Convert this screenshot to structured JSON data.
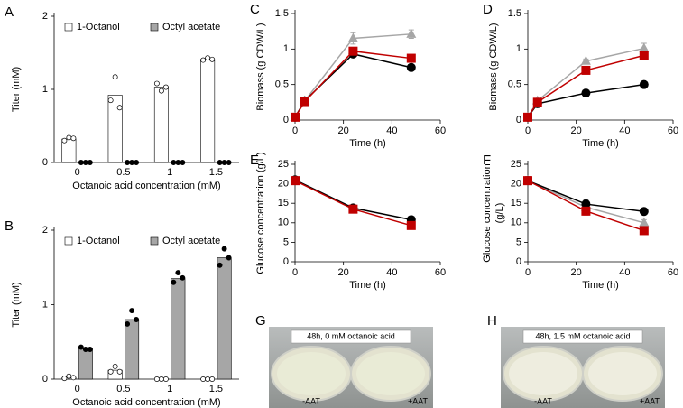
{
  "chart_data": [
    {
      "type": "bar",
      "label": "A",
      "y_label": "Titer (mM)",
      "x_label": "Octanoic acid concentration (mM)",
      "categories": [
        "0",
        "0.5",
        "1",
        "1.5"
      ],
      "ylim": [
        0,
        2
      ],
      "yticks": [
        0,
        1,
        2
      ],
      "series": [
        {
          "name": "1-Octanol",
          "color": "#ffffff",
          "point_color": "#ffffff",
          "values": [
            0.32,
            0.92,
            1.03,
            1.41
          ],
          "points": [
            [
              0.3,
              0.34,
              0.33
            ],
            [
              0.85,
              1.17,
              0.75
            ],
            [
              1.08,
              0.98,
              1.03
            ],
            [
              1.4,
              1.43,
              1.41
            ]
          ]
        },
        {
          "name": "Octyl acetate",
          "color": "#a6a6a6",
          "point_color": "#000000",
          "values": [
            0,
            0,
            0,
            0
          ],
          "points": [
            [
              0,
              0,
              0
            ],
            [
              0,
              0,
              0
            ],
            [
              0,
              0,
              0
            ],
            [
              0,
              0,
              0
            ]
          ]
        }
      ]
    },
    {
      "type": "bar",
      "label": "B",
      "y_label": "Titer (mM)",
      "x_label": "Octanoic acid concentration (mM)",
      "categories": [
        "0",
        "0.5",
        "1",
        "1.5"
      ],
      "ylim": [
        0,
        2
      ],
      "yticks": [
        0,
        1,
        2
      ],
      "series": [
        {
          "name": "1-Octanol",
          "color": "#ffffff",
          "point_color": "#ffffff",
          "values": [
            0.02,
            0.12,
            0,
            0
          ],
          "points": [
            [
              0.01,
              0.04,
              0.02
            ],
            [
              0.1,
              0.17,
              0.1
            ],
            [
              0,
              0,
              0
            ],
            [
              0,
              0,
              0
            ]
          ]
        },
        {
          "name": "Octyl acetate",
          "color": "#a6a6a6",
          "point_color": "#000000",
          "values": [
            0.41,
            0.8,
            1.35,
            1.63
          ],
          "points": [
            [
              0.43,
              0.4,
              0.4
            ],
            [
              0.74,
              0.92,
              0.8
            ],
            [
              1.3,
              1.43,
              1.36
            ],
            [
              1.53,
              1.75,
              1.63
            ]
          ]
        }
      ]
    },
    {
      "type": "line",
      "label": "C",
      "y_label": "Biomass (g CDW/L)",
      "x_label": "Time (h)",
      "x": [
        0,
        4,
        24,
        48
      ],
      "xlim": [
        0,
        60
      ],
      "xticks": [
        0,
        20,
        40,
        60
      ],
      "ylim": [
        0,
        1.5
      ],
      "yticks": [
        0,
        0.5,
        1,
        1.5
      ],
      "series": [
        {
          "color": "#a6a6a6",
          "marker": "triangle",
          "values": [
            0.04,
            0.27,
            1.15,
            1.21
          ],
          "errors": [
            0.02,
            0.02,
            0.08,
            0.06
          ]
        },
        {
          "color": "#000000",
          "marker": "circle",
          "values": [
            0.04,
            0.27,
            0.93,
            0.74
          ]
        },
        {
          "color": "#c00000",
          "marker": "square",
          "values": [
            0.04,
            0.26,
            0.97,
            0.87
          ]
        }
      ]
    },
    {
      "type": "line",
      "label": "D",
      "y_label": "Biomass (g CDW/L)",
      "x_label": "Time (h)",
      "x": [
        0,
        4,
        24,
        48
      ],
      "xlim": [
        0,
        60
      ],
      "xticks": [
        0,
        20,
        40,
        60
      ],
      "ylim": [
        0,
        1.5
      ],
      "yticks": [
        0,
        0.5,
        1,
        1.5
      ],
      "series": [
        {
          "color": "#a6a6a6",
          "marker": "triangle",
          "values": [
            0.04,
            0.27,
            0.83,
            1.01
          ],
          "errors": [
            0.02,
            0.02,
            0.03,
            0.07
          ]
        },
        {
          "color": "#000000",
          "marker": "circle",
          "values": [
            0.04,
            0.23,
            0.38,
            0.5
          ]
        },
        {
          "color": "#c00000",
          "marker": "square",
          "values": [
            0.04,
            0.25,
            0.7,
            0.91
          ]
        }
      ]
    },
    {
      "type": "line",
      "label": "E",
      "y_label": "Glucose concentration (g/L)",
      "x_label": "Time (h)",
      "x": [
        0,
        24,
        48
      ],
      "xlim": [
        0,
        60
      ],
      "xticks": [
        0,
        20,
        40,
        60
      ],
      "ylim": [
        0,
        25
      ],
      "yticks": [
        0,
        5,
        10,
        15,
        20,
        25
      ],
      "series": [
        {
          "color": "#000000",
          "marker": "circle",
          "values": [
            21.0,
            13.8,
            10.8
          ]
        },
        {
          "color": "#c00000",
          "marker": "square",
          "values": [
            20.8,
            13.5,
            9.3
          ]
        }
      ]
    },
    {
      "type": "line",
      "label": "F",
      "y_label": [
        "Glucose concentration",
        "(g/L)"
      ],
      "x_label": "Time (h)",
      "x": [
        0,
        24,
        48
      ],
      "xlim": [
        0,
        60
      ],
      "xticks": [
        0,
        20,
        40,
        60
      ],
      "ylim": [
        0,
        25
      ],
      "yticks": [
        0,
        5,
        10,
        15,
        20,
        25
      ],
      "series": [
        {
          "color": "#a6a6a6",
          "marker": "triangle",
          "values": [
            20.8,
            14.0,
            10.0
          ],
          "errors": [
            1.0,
            0.8,
            0.8
          ]
        },
        {
          "color": "#000000",
          "marker": "circle",
          "values": [
            20.8,
            14.8,
            12.9
          ],
          "errors": [
            1.0,
            1.2,
            0.8
          ]
        },
        {
          "color": "#c00000",
          "marker": "square",
          "values": [
            20.8,
            13.0,
            8.0
          ],
          "errors": [
            1.0,
            1.0,
            0.8
          ]
        }
      ]
    }
  ],
  "photos": [
    {
      "label": "G",
      "caption": "48h, 0 mM octanoic acid",
      "left": "-AAT",
      "right": "+AAT"
    },
    {
      "label": "H",
      "caption": "48h, 1.5 mM octanoic acid",
      "left": "-AAT",
      "right": "+AAT"
    }
  ]
}
